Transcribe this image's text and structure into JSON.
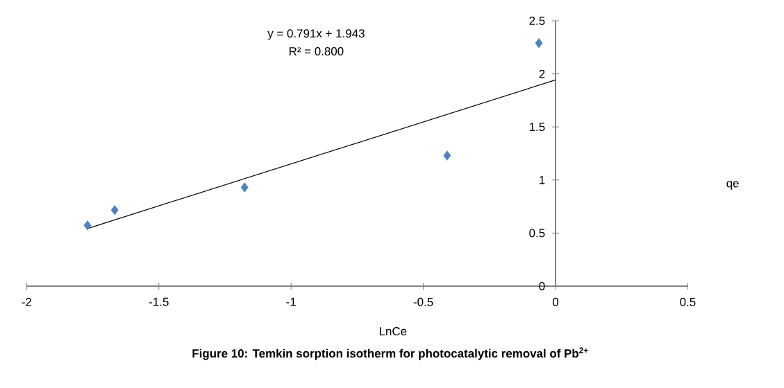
{
  "chart_data": {
    "type": "scatter",
    "title": "Figure 10: Temkin sorption isotherm  for photocatalytic removal of Pb$^{2+}$",
    "xlabel": "LnCe",
    "ylabel": "qe",
    "annotations": [
      "y = 0.791x + 1.943",
      "R² = 0.800"
    ],
    "marker": "diamond",
    "xlim": [
      -2,
      0.5
    ],
    "ylim": [
      0,
      2.5
    ],
    "xticks": [
      -2,
      -1.5,
      -1,
      -0.5,
      0,
      0.5
    ],
    "yticks": [
      0,
      0.5,
      1,
      1.5,
      2,
      2.5
    ],
    "grid": false,
    "series": [
      {
        "color": "#4f81bd",
        "x": [
          -1.77,
          -1.667,
          -1.176,
          -0.41,
          -0.063
        ],
        "values": [
          0.573,
          0.717,
          0.93,
          1.23,
          2.29
        ]
      },
      {
        "type": "line",
        "color": "#000000",
        "marker": "none",
        "x": [
          -1.77,
          0
        ],
        "values": [
          0.543,
          1.943
        ]
      }
    ]
  }
}
